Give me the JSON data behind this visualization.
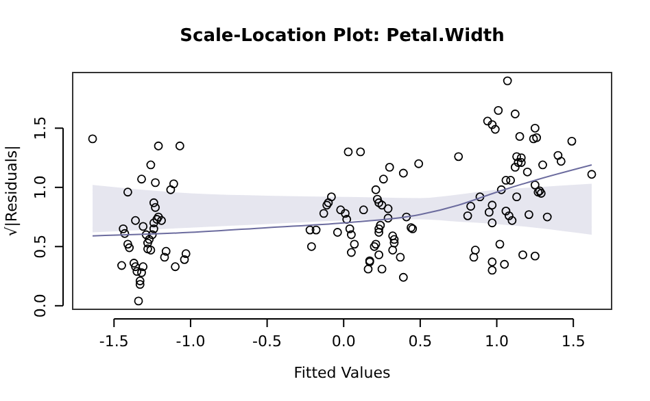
{
  "chart_data": {
    "type": "scatter",
    "title": "Scale-Location Plot: Petal.Width",
    "xlabel": "Fitted Values",
    "ylabel": "√|Residuals|",
    "xlim": [
      -1.77,
      1.75
    ],
    "ylim": [
      -0.03,
      1.97
    ],
    "xticks": [
      {
        "value": -1.5,
        "label": "-1.5"
      },
      {
        "value": -1,
        "label": "-1.0"
      },
      {
        "value": -0.5,
        "label": "-0.5"
      },
      {
        "value": 0,
        "label": "0.0"
      },
      {
        "value": 0.5,
        "label": "0.5"
      },
      {
        "value": 1,
        "label": "1.0"
      },
      {
        "value": 1.5,
        "label": "1.5"
      }
    ],
    "yticks": [
      {
        "value": 0,
        "label": "0.0"
      },
      {
        "value": 0.5,
        "label": "0.5"
      },
      {
        "value": 1,
        "label": "1.0"
      },
      {
        "value": 1.5,
        "label": "1.5"
      }
    ],
    "grid": false,
    "marker": "circle",
    "series": [
      {
        "color": "#000000",
        "x": [
          -1.64,
          -1.21,
          -1.07,
          -1.26,
          -1.32,
          -1.23,
          -1.11,
          -1.13,
          -1.41,
          -1.24,
          -1.23,
          -1.21,
          -1.22,
          -1.19,
          -1.36,
          -1.24,
          -1.44,
          -1.31,
          -1.43,
          -1.24,
          -1.29,
          -1.25,
          -1.27,
          -1.28,
          -1.41,
          -1.4,
          -1.28,
          -1.26,
          -1.16,
          -1.17,
          -1.03,
          -1.04,
          -1.45,
          -1.37,
          -1.36,
          -1.31,
          -1.1,
          -1.35,
          -1.32,
          -1.33,
          -1.33,
          -1.34,
          0.03,
          0.11,
          0.3,
          0.49,
          0.39,
          0.26,
          0.21,
          -0.08,
          0.22,
          0.23,
          -0.1,
          -0.11,
          0.25,
          0.29,
          -0.02,
          0.13,
          -0.13,
          0.01,
          0.41,
          0.02,
          0.29,
          0.24,
          0.23,
          0.44,
          0.45,
          -0.22,
          -0.18,
          -0.04,
          0.04,
          0.23,
          0.05,
          0.32,
          0.33,
          0.33,
          0.07,
          -0.21,
          0.21,
          0.2,
          0.32,
          0.05,
          0.23,
          0.37,
          0.17,
          0.17,
          0.16,
          0.25,
          0.39,
          1.07,
          1.01,
          1.12,
          0.94,
          0.97,
          0.99,
          1.25,
          1.15,
          1.24,
          1.26,
          1.49,
          0.75,
          1.13,
          1.16,
          1.4,
          1.42,
          1.14,
          1.16,
          1.12,
          1.3,
          1.2,
          1.62,
          1.06,
          1.09,
          1.25,
          1.28,
          1.29,
          1.27,
          1.03,
          1.13,
          0.89,
          0.83,
          0.97,
          0.81,
          0.95,
          1.06,
          1.08,
          1.1,
          0.97,
          1.21,
          1.33,
          1.02,
          0.86,
          0.85,
          1.17,
          1.25,
          0.97,
          1.05,
          0.97
        ],
        "values": [
          1.41,
          1.35,
          1.35,
          1.19,
          1.07,
          1.04,
          1.03,
          0.98,
          0.96,
          0.87,
          0.83,
          0.75,
          0.73,
          0.72,
          0.72,
          0.7,
          0.65,
          0.67,
          0.61,
          0.65,
          0.6,
          0.6,
          0.56,
          0.53,
          0.52,
          0.49,
          0.48,
          0.47,
          0.46,
          0.41,
          0.44,
          0.39,
          0.34,
          0.36,
          0.33,
          0.33,
          0.33,
          0.29,
          0.28,
          0.21,
          0.18,
          0.04,
          1.3,
          1.3,
          1.17,
          1.2,
          1.12,
          1.07,
          0.98,
          0.92,
          0.9,
          0.87,
          0.87,
          0.85,
          0.85,
          0.82,
          0.81,
          0.81,
          0.78,
          0.78,
          0.75,
          0.73,
          0.74,
          0.68,
          0.65,
          0.66,
          0.65,
          0.64,
          0.64,
          0.62,
          0.65,
          0.62,
          0.6,
          0.59,
          0.56,
          0.53,
          0.52,
          0.5,
          0.52,
          0.5,
          0.47,
          0.45,
          0.43,
          0.41,
          0.38,
          0.37,
          0.31,
          0.31,
          0.24,
          1.9,
          1.65,
          1.62,
          1.56,
          1.53,
          1.49,
          1.5,
          1.43,
          1.41,
          1.42,
          1.39,
          1.26,
          1.26,
          1.25,
          1.27,
          1.22,
          1.21,
          1.21,
          1.17,
          1.19,
          1.13,
          1.11,
          1.06,
          1.06,
          1.02,
          0.97,
          0.95,
          0.96,
          0.98,
          0.92,
          0.92,
          0.84,
          0.85,
          0.76,
          0.79,
          0.8,
          0.76,
          0.72,
          0.7,
          0.77,
          0.75,
          0.52,
          0.47,
          0.41,
          0.43,
          0.42,
          0.37,
          0.35,
          0.3
        ]
      },
      {
        "type": "line",
        "color": "#6b6b9e",
        "marker": "none",
        "x": [
          -1.64,
          -1.0,
          -0.5,
          0,
          0.5,
          0.75,
          1.0,
          1.25,
          1.62
        ],
        "values": [
          0.59,
          0.62,
          0.66,
          0.7,
          0.77,
          0.85,
          0.96,
          1.06,
          1.19
        ],
        "lower": [
          0.62,
          0.66,
          0.69,
          0.72,
          0.73,
          0.71,
          0.69,
          0.66,
          0.6
        ],
        "upper": [
          1.02,
          0.95,
          0.93,
          0.92,
          0.91,
          0.94,
          0.98,
          1.0,
          1.03
        ]
      }
    ]
  }
}
